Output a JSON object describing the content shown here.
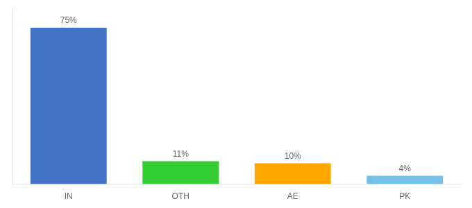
{
  "chart_data": {
    "type": "bar",
    "categories": [
      "IN",
      "OTH",
      "AE",
      "PK"
    ],
    "values": [
      75,
      11,
      10,
      4
    ],
    "value_labels": [
      "75%",
      "11%",
      "10%",
      "4%"
    ],
    "colors": [
      "#4472C4",
      "#33CC33",
      "#FFA500",
      "#74C0E8"
    ],
    "ylim": [
      0,
      85
    ],
    "tick_labels": "x",
    "data_labels": true,
    "grid": false
  }
}
